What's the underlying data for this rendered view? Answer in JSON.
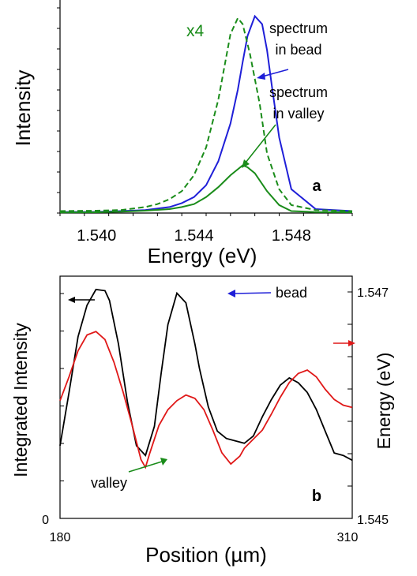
{
  "colors": {
    "blue": "#1f1fd8",
    "green": "#1a8c1a",
    "red": "#e01818",
    "black": "#000000",
    "axis": "#000000"
  },
  "chart_data": [
    {
      "id": "a",
      "type": "line",
      "panel_label": "a",
      "xlabel": "Energy (eV)",
      "ylabel": "Intensity",
      "xlim": [
        1.5385,
        1.5505
      ],
      "ylim": [
        0,
        1.0
      ],
      "x_ticks": [
        "1.540",
        "1.544",
        "1.548"
      ],
      "x_tick_values": [
        1.54,
        1.544,
        1.548
      ],
      "grid": false,
      "annotations": [
        "x4",
        "spectrum",
        "in bead",
        "spectrum",
        "in valley"
      ],
      "series": [
        {
          "color": "#1f1fd8",
          "dash": "solid",
          "x": [
            1.5385,
            1.54,
            1.541,
            1.542,
            1.543,
            1.5435,
            1.544,
            1.5445,
            1.545,
            1.5455,
            1.5458,
            1.546,
            1.5462,
            1.5465,
            1.5468,
            1.547,
            1.5472,
            1.5475,
            1.548,
            1.549,
            1.5505
          ],
          "y": [
            0.005,
            0.006,
            0.01,
            0.015,
            0.03,
            0.05,
            0.08,
            0.14,
            0.26,
            0.45,
            0.62,
            0.76,
            0.89,
            0.99,
            0.95,
            0.82,
            0.64,
            0.38,
            0.12,
            0.02,
            0.01
          ]
        },
        {
          "color": "#1a8c1a",
          "dash": "solid",
          "x": [
            1.5385,
            1.54,
            1.541,
            1.542,
            1.543,
            1.5435,
            1.544,
            1.5445,
            1.545,
            1.5455,
            1.546,
            1.5462,
            1.5465,
            1.547,
            1.5475,
            1.548,
            1.549,
            1.5505
          ],
          "y": [
            0.003,
            0.004,
            0.007,
            0.012,
            0.02,
            0.03,
            0.045,
            0.08,
            0.13,
            0.19,
            0.24,
            0.23,
            0.2,
            0.11,
            0.04,
            0.01,
            0.005,
            0.004
          ]
        },
        {
          "color": "#1a8c1a",
          "dash": "dashed",
          "x": [
            1.5385,
            1.54,
            1.541,
            1.542,
            1.5425,
            1.543,
            1.5435,
            1.544,
            1.5445,
            1.545,
            1.5455,
            1.5458,
            1.546,
            1.5463,
            1.5467,
            1.547,
            1.5475,
            1.548,
            1.549,
            1.5505
          ],
          "y": [
            0.01,
            0.012,
            0.015,
            0.03,
            0.045,
            0.07,
            0.11,
            0.19,
            0.33,
            0.57,
            0.9,
            0.98,
            0.95,
            0.8,
            0.55,
            0.3,
            0.12,
            0.04,
            0.015,
            0.01
          ]
        }
      ]
    },
    {
      "id": "b",
      "type": "line",
      "panel_label": "b",
      "xlabel": "Position (µm)",
      "ylabel": "Integrated Intensity",
      "y2label": "Energy (eV)",
      "xlim": [
        180,
        310
      ],
      "ylim": [
        0,
        1.0
      ],
      "y2lim": [
        1.545,
        1.547
      ],
      "x_ticks": [
        "180",
        "310"
      ],
      "x_tick_values": [
        180,
        310
      ],
      "y_ticks": [
        "0"
      ],
      "y2_ticks": [
        "1.547",
        "1.545"
      ],
      "grid": false,
      "annotations": [
        "bead",
        "valley"
      ],
      "series": [
        {
          "color": "#000000",
          "axis": "left",
          "x": [
            180,
            184,
            188,
            192,
            196,
            200,
            202,
            206,
            210,
            214,
            218,
            222,
            225,
            228,
            232,
            236,
            240,
            242,
            246,
            250,
            254,
            258,
            262,
            266,
            270,
            274,
            278,
            282,
            286,
            290,
            294,
            298,
            302,
            306,
            310
          ],
          "y": [
            0.3,
            0.52,
            0.75,
            0.88,
            0.945,
            0.94,
            0.9,
            0.72,
            0.48,
            0.3,
            0.26,
            0.38,
            0.6,
            0.8,
            0.93,
            0.89,
            0.72,
            0.62,
            0.46,
            0.36,
            0.33,
            0.32,
            0.31,
            0.34,
            0.42,
            0.49,
            0.55,
            0.58,
            0.56,
            0.52,
            0.45,
            0.36,
            0.27,
            0.26,
            0.24
          ]
        },
        {
          "color": "#e01818",
          "axis": "right",
          "x": [
            180,
            184,
            188,
            192,
            196,
            200,
            204,
            208,
            212,
            216,
            218,
            220,
            224,
            228,
            232,
            236,
            240,
            244,
            248,
            252,
            256,
            260,
            262,
            266,
            270,
            274,
            278,
            282,
            286,
            290,
            294,
            298,
            302,
            306,
            310
          ],
          "y": [
            1.54604,
            1.54625,
            1.54648,
            1.54662,
            1.54665,
            1.54658,
            1.54638,
            1.54612,
            1.54583,
            1.54552,
            1.54545,
            1.54558,
            1.54582,
            1.54596,
            1.54604,
            1.54609,
            1.54606,
            1.54596,
            1.54578,
            1.54558,
            1.54548,
            1.54555,
            1.54562,
            1.5457,
            1.54578,
            1.54592,
            1.54607,
            1.5462,
            1.54628,
            1.54631,
            1.54625,
            1.54614,
            1.54605,
            1.546,
            1.54598
          ]
        }
      ]
    }
  ]
}
